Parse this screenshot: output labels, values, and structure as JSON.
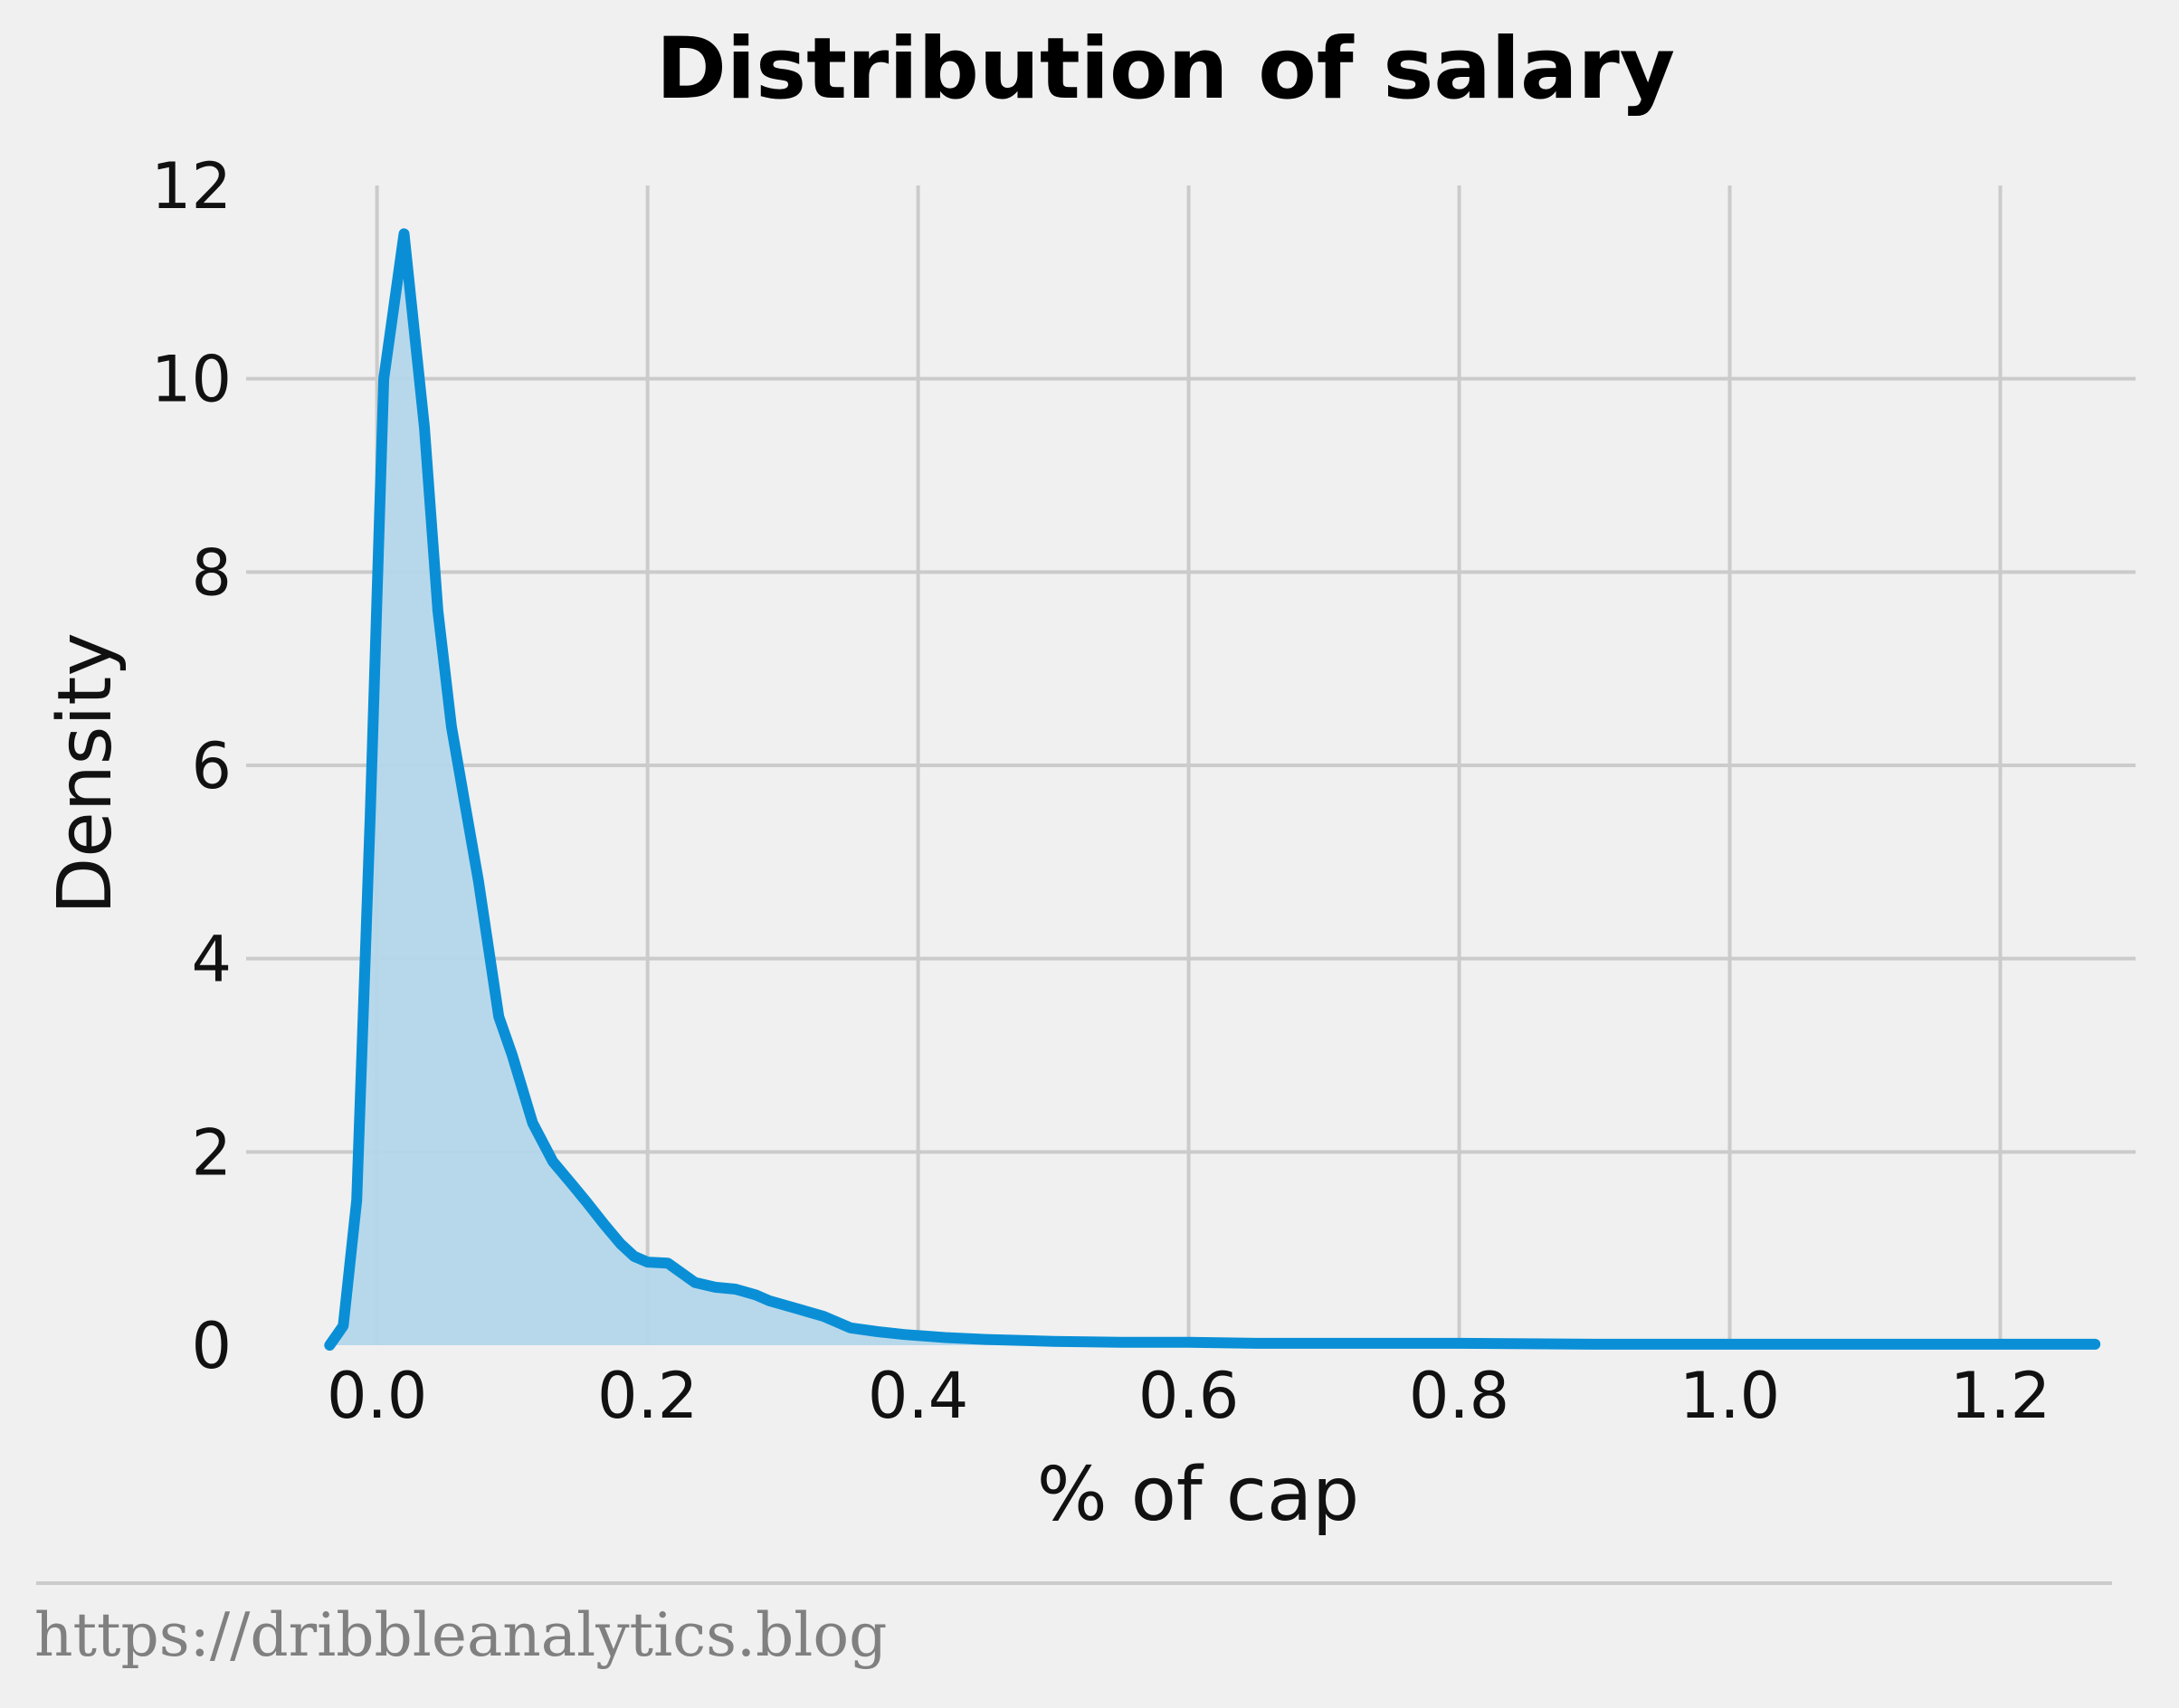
{
  "chart_data": {
    "type": "area",
    "title": "Distribution of salary",
    "xlabel": "% of cap",
    "ylabel": "Density",
    "xlim": [
      -0.07,
      1.3
    ],
    "ylim": [
      0,
      12
    ],
    "xticks": [
      "0.0",
      "0.2",
      "0.4",
      "0.6",
      "0.8",
      "1.0",
      "1.2"
    ],
    "xtick_values": [
      0.0,
      0.2,
      0.4,
      0.6,
      0.8,
      1.0,
      1.2
    ],
    "yticks": [
      "0",
      "2",
      "4",
      "6",
      "8",
      "10",
      "12"
    ],
    "ytick_values": [
      0,
      2,
      4,
      6,
      8,
      10,
      12
    ],
    "grid": true,
    "colors": {
      "line": "#0a8fd6",
      "fill": "#b3d6ea",
      "grid": "#cbcbcb",
      "background": "#f0f0f0"
    },
    "series": [
      {
        "x": [
          -0.035,
          -0.025,
          -0.015,
          -0.005,
          0.005,
          0.02,
          0.035,
          0.045,
          0.055,
          0.065,
          0.075,
          0.09,
          0.1,
          0.115,
          0.13,
          0.145,
          0.155,
          0.168,
          0.18,
          0.19,
          0.2,
          0.215,
          0.235,
          0.25,
          0.265,
          0.28,
          0.29,
          0.31,
          0.33,
          0.35,
          0.37,
          0.39,
          0.42,
          0.45,
          0.5,
          0.55,
          0.6,
          0.65,
          0.7,
          0.8,
          0.9,
          1.0,
          1.1,
          1.2,
          1.27
        ],
        "y": [
          0.0,
          0.2,
          1.5,
          5.5,
          10.0,
          11.5,
          9.5,
          7.6,
          6.4,
          5.6,
          4.8,
          3.4,
          3.0,
          2.3,
          1.9,
          1.65,
          1.48,
          1.25,
          1.05,
          0.92,
          0.86,
          0.85,
          0.65,
          0.6,
          0.58,
          0.52,
          0.46,
          0.38,
          0.3,
          0.18,
          0.14,
          0.11,
          0.08,
          0.06,
          0.04,
          0.03,
          0.03,
          0.02,
          0.02,
          0.02,
          0.01,
          0.01,
          0.01,
          0.01,
          0.01
        ]
      }
    ]
  },
  "footer": {
    "source_text": "https://dribbleanalytics.blog"
  }
}
